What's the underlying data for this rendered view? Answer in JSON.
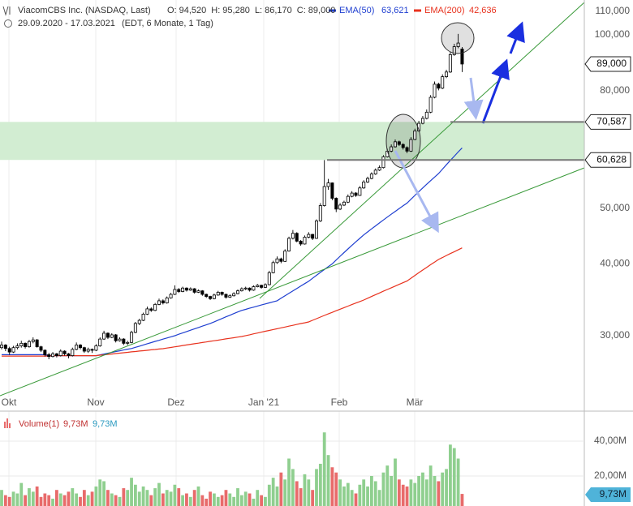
{
  "header": {
    "title": "ViacomCBS Inc. (NASDAQ, Last)",
    "quote": [
      {
        "key": "O:",
        "text": "94,520"
      },
      {
        "key": "H:",
        "text": "95,280"
      },
      {
        "key": "L:",
        "text": "86,170"
      },
      {
        "key": "C:",
        "text": "89,000"
      }
    ],
    "range": "29.09.2020 - 17.03.2021",
    "info": "(EDT, 6 Monate, 1 Tag)"
  },
  "chart_data": [
    {
      "type": "candlestick",
      "months": [
        "Okt",
        "Nov",
        "Dez",
        "Jan '21",
        "Feb",
        "Mär"
      ],
      "ohlc": [
        [
          28600,
          29300,
          28400,
          28900
        ],
        [
          28900,
          29000,
          28200,
          28500
        ],
        [
          28500,
          28700,
          27800,
          28100
        ],
        [
          28100,
          28800,
          28000,
          28600
        ],
        [
          28600,
          29100,
          28400,
          28800
        ],
        [
          28800,
          29400,
          28600,
          29100
        ],
        [
          29100,
          29200,
          28500,
          28700
        ],
        [
          28700,
          29500,
          28600,
          29300
        ],
        [
          29300,
          29800,
          29100,
          29500
        ],
        [
          29500,
          29600,
          28600,
          28700
        ],
        [
          28700,
          28800,
          28100,
          28300
        ],
        [
          28300,
          28400,
          27600,
          27800
        ],
        [
          27800,
          28000,
          27300,
          27600
        ],
        [
          27600,
          28100,
          27500,
          27900
        ],
        [
          27900,
          28000,
          27500,
          27700
        ],
        [
          27700,
          28400,
          27600,
          28200
        ],
        [
          28200,
          28300,
          27700,
          27900
        ],
        [
          27900,
          28000,
          27400,
          27700
        ],
        [
          27700,
          28600,
          27600,
          28400
        ],
        [
          28400,
          29200,
          28300,
          28900
        ],
        [
          28900,
          29000,
          28400,
          28600
        ],
        [
          28600,
          28700,
          28000,
          28200
        ],
        [
          28200,
          28600,
          28000,
          28400
        ],
        [
          28400,
          28500,
          28000,
          28300
        ],
        [
          28300,
          29000,
          28200,
          28800
        ],
        [
          28800,
          29800,
          28700,
          29600
        ],
        [
          29600,
          30600,
          29500,
          30300
        ],
        [
          30300,
          30400,
          29600,
          29800
        ],
        [
          29800,
          30300,
          29700,
          30100
        ],
        [
          30100,
          30200,
          29200,
          29400
        ],
        [
          29400,
          29800,
          29300,
          29600
        ],
        [
          29600,
          29700,
          28900,
          29100
        ],
        [
          29100,
          29400,
          28900,
          29200
        ],
        [
          29200,
          30600,
          29100,
          30400
        ],
        [
          30400,
          31700,
          30300,
          31500
        ],
        [
          31500,
          32100,
          31300,
          31900
        ],
        [
          31900,
          32900,
          31800,
          32700
        ],
        [
          32700,
          33700,
          32600,
          33400
        ],
        [
          33400,
          33600,
          33000,
          33200
        ],
        [
          33200,
          34200,
          33100,
          34000
        ],
        [
          34000,
          34800,
          33900,
          34500
        ],
        [
          34500,
          34700,
          34000,
          34200
        ],
        [
          34200,
          35100,
          34100,
          34900
        ],
        [
          34900,
          35600,
          34800,
          35400
        ],
        [
          35400,
          36700,
          35300,
          36100
        ],
        [
          36100,
          36300,
          35600,
          35800
        ],
        [
          35800,
          36500,
          35700,
          36300
        ],
        [
          36300,
          36400,
          35800,
          36000
        ],
        [
          36000,
          36400,
          35900,
          36200
        ],
        [
          36200,
          36300,
          35500,
          35700
        ],
        [
          35700,
          36100,
          35600,
          35900
        ],
        [
          35900,
          36000,
          35200,
          35400
        ],
        [
          35400,
          35500,
          34900,
          35100
        ],
        [
          35100,
          35200,
          34600,
          34800
        ],
        [
          34800,
          35500,
          34700,
          35300
        ],
        [
          35300,
          35900,
          35200,
          35700
        ],
        [
          35700,
          35800,
          35200,
          35400
        ],
        [
          35400,
          35500,
          34800,
          35000
        ],
        [
          35000,
          35400,
          34900,
          35200
        ],
        [
          35200,
          35700,
          35100,
          35500
        ],
        [
          35500,
          36100,
          35400,
          35900
        ],
        [
          35900,
          36400,
          35800,
          36200
        ],
        [
          36200,
          36500,
          36000,
          36300
        ],
        [
          36300,
          36400,
          35800,
          36000
        ],
        [
          36000,
          36700,
          35900,
          36500
        ],
        [
          36500,
          36900,
          36400,
          36700
        ],
        [
          36700,
          36800,
          36200,
          36400
        ],
        [
          36400,
          37000,
          36300,
          36800
        ],
        [
          36800,
          38900,
          36700,
          38600
        ],
        [
          38600,
          40500,
          38500,
          40200
        ],
        [
          40200,
          41200,
          40000,
          40800
        ],
        [
          40800,
          41000,
          40100,
          40400
        ],
        [
          40400,
          42400,
          40300,
          42100
        ],
        [
          42100,
          44600,
          42000,
          44300
        ],
        [
          44300,
          45800,
          44100,
          45200
        ],
        [
          45200,
          45400,
          43600,
          43800
        ],
        [
          43800,
          44000,
          43000,
          43300
        ],
        [
          43300,
          44800,
          43200,
          44500
        ],
        [
          44500,
          45400,
          44300,
          45000
        ],
        [
          45000,
          45100,
          44000,
          44300
        ],
        [
          44300,
          47800,
          44200,
          47500
        ],
        [
          47500,
          51000,
          47300,
          50500
        ],
        [
          50500,
          60600,
          50300,
          54500
        ],
        [
          54500,
          56200,
          53800,
          55300
        ],
        [
          55300,
          55400,
          51600,
          52000
        ],
        [
          52000,
          52200,
          49200,
          49800
        ],
        [
          49800,
          51000,
          49600,
          50600
        ],
        [
          50600,
          51500,
          50400,
          51200
        ],
        [
          51200,
          52800,
          51000,
          52400
        ],
        [
          52400,
          53500,
          52200,
          53100
        ],
        [
          53100,
          53300,
          52300,
          52600
        ],
        [
          52600,
          54600,
          52500,
          54200
        ],
        [
          54200,
          55900,
          54000,
          55500
        ],
        [
          55500,
          56700,
          55300,
          56300
        ],
        [
          56300,
          57700,
          56100,
          57300
        ],
        [
          57300,
          58600,
          57100,
          58200
        ],
        [
          58200,
          59300,
          58000,
          58800
        ],
        [
          58800,
          61800,
          58600,
          61400
        ],
        [
          61400,
          63400,
          61200,
          62800
        ],
        [
          62800,
          64500,
          62500,
          63900
        ],
        [
          63900,
          65800,
          63700,
          65200
        ],
        [
          65200,
          65500,
          64100,
          64500
        ],
        [
          64500,
          64800,
          63200,
          63700
        ],
        [
          63700,
          64000,
          62300,
          62800
        ],
        [
          62800,
          66400,
          62600,
          65800
        ],
        [
          65800,
          68700,
          65600,
          68100
        ],
        [
          68100,
          70900,
          67900,
          70200
        ],
        [
          70200,
          72300,
          69900,
          71600
        ],
        [
          71600,
          74200,
          71300,
          73400
        ],
        [
          73400,
          78600,
          73100,
          77900
        ],
        [
          77900,
          83000,
          77600,
          82100
        ],
        [
          82100,
          82600,
          80100,
          80800
        ],
        [
          80800,
          85400,
          80500,
          84600
        ],
        [
          84600,
          87000,
          84100,
          86200
        ],
        [
          86200,
          93400,
          85900,
          92400
        ],
        [
          92400,
          96500,
          92000,
          95400
        ],
        [
          95400,
          100400,
          94800,
          96800
        ],
        [
          94520,
          95280,
          86170,
          89000
        ]
      ],
      "up_color": "#ffffff",
      "down_color": "#000000",
      "series": [
        {
          "name": "EMA(50)",
          "color": "#1f3fd0",
          "last_label": "63,621",
          "values": [
            27800,
            27800,
            27800,
            27800,
            27800,
            27800,
            27800,
            27800,
            27800,
            27800,
            27800,
            27800,
            27700,
            27700,
            27700,
            27700,
            27700,
            27700,
            27700,
            27700,
            27700,
            27700,
            27700,
            27700,
            27700,
            27790,
            27880,
            27970,
            28060,
            28150,
            28240,
            28330,
            28420,
            28500,
            28640,
            28770,
            28910,
            29050,
            29180,
            29320,
            29450,
            29590,
            29730,
            29860,
            30000,
            30170,
            30330,
            30500,
            30670,
            30830,
            31000,
            31170,
            31330,
            31500,
            31710,
            31930,
            32140,
            32350,
            32560,
            32780,
            32990,
            33200,
            33340,
            33490,
            33630,
            33780,
            33920,
            34070,
            34210,
            34360,
            34500,
            34850,
            35200,
            35550,
            35900,
            36250,
            36600,
            36950,
            37300,
            37750,
            38200,
            38650,
            39100,
            39550,
            40000,
            40610,
            41230,
            41840,
            42450,
            43060,
            43680,
            44290,
            44900,
            45450,
            46010,
            46560,
            47120,
            47670,
            48230,
            48780,
            49340,
            49890,
            50450,
            51000,
            51800,
            52600,
            53400,
            54200,
            55000,
            55800,
            56600,
            57400,
            58440,
            59470,
            60510,
            61550,
            62590,
            63621
          ]
        },
        {
          "name": "EMA(200)",
          "color": "#e8321e",
          "last_label": "42,636",
          "values": [
            27650,
            27650,
            27650,
            27650,
            27650,
            27650,
            27650,
            27650,
            27650,
            27650,
            27650,
            27650,
            27650,
            27700,
            27700,
            27700,
            27700,
            27700,
            27700,
            27700,
            27700,
            27700,
            27700,
            27700,
            27700,
            27750,
            27790,
            27840,
            27880,
            27930,
            27980,
            28020,
            28070,
            28120,
            28160,
            28210,
            28250,
            28300,
            28350,
            28390,
            28440,
            28480,
            28550,
            28620,
            28690,
            28760,
            28840,
            28910,
            28980,
            29050,
            29120,
            29190,
            29260,
            29330,
            29400,
            29470,
            29540,
            29620,
            29690,
            29760,
            29830,
            29900,
            30010,
            30110,
            30220,
            30320,
            30430,
            30540,
            30640,
            30750,
            30850,
            30960,
            31060,
            31170,
            31270,
            31380,
            31490,
            31590,
            31700,
            31910,
            32110,
            32320,
            32530,
            32740,
            32940,
            33150,
            33360,
            33560,
            33770,
            33980,
            34190,
            34390,
            34600,
            34850,
            35100,
            35350,
            35600,
            35850,
            36090,
            36340,
            36590,
            36840,
            37090,
            37340,
            37760,
            38180,
            38600,
            39020,
            39440,
            39860,
            40280,
            40700,
            41020,
            41350,
            41670,
            41990,
            42310,
            42636
          ]
        }
      ],
      "ylim": [
        23440,
        115000
      ],
      "log_scale": true,
      "grid": true,
      "yticks": [
        {
          "value": 30000,
          "label": "30,000"
        },
        {
          "value": 40000,
          "label": "40,000"
        },
        {
          "value": 50000,
          "label": "50,000"
        },
        {
          "value": 80000,
          "label": "80,000"
        },
        {
          "value": 100000,
          "label": "100,000"
        },
        {
          "value": 110000,
          "label": "110,000"
        }
      ],
      "levels": [
        {
          "value": 89000,
          "label": "89,000"
        },
        {
          "value": 70587,
          "label": "70,587"
        },
        {
          "value": 60628,
          "label": "60,628"
        }
      ],
      "zone_color": "#d2edd2"
    },
    {
      "type": "volume",
      "title": "Volume(1)",
      "last_label": "9,73M",
      "up_color": "#8fcf8f",
      "down_color": "#e86b6b",
      "marker_color": "#4fb3d9",
      "values": [
        12000000,
        9000000,
        8000000,
        11000000,
        10000000,
        16000000,
        9000000,
        13000000,
        11000000,
        14000000,
        8000000,
        10000000,
        9000000,
        7000000,
        12000000,
        10000000,
        9000000,
        11000000,
        13000000,
        10000000,
        8000000,
        12000000,
        9000000,
        11000000,
        14000000,
        18000000,
        17000000,
        12000000,
        10000000,
        9000000,
        8000000,
        13000000,
        12000000,
        19000000,
        15000000,
        11000000,
        14000000,
        12000000,
        9000000,
        13000000,
        16000000,
        10000000,
        12000000,
        11000000,
        15000000,
        13000000,
        9000000,
        10000000,
        8000000,
        12000000,
        14000000,
        9000000,
        7000000,
        11000000,
        10000000,
        8000000,
        9000000,
        12000000,
        10000000,
        8000000,
        13000000,
        9000000,
        11000000,
        10000000,
        7000000,
        12000000,
        9000000,
        8000000,
        15000000,
        19000000,
        14000000,
        22000000,
        18000000,
        30000000,
        24000000,
        17000000,
        13000000,
        21000000,
        18000000,
        12000000,
        24000000,
        27000000,
        45000000,
        32000000,
        25000000,
        22000000,
        18000000,
        14000000,
        16000000,
        12000000,
        10000000,
        15000000,
        18000000,
        14000000,
        20000000,
        17000000,
        12000000,
        22000000,
        26000000,
        20000000,
        30000000,
        18000000,
        15000000,
        14000000,
        18000000,
        16000000,
        20000000,
        22000000,
        18000000,
        26000000,
        20000000,
        17000000,
        22000000,
        24000000,
        38000000,
        36000000,
        30000000,
        9730000
      ],
      "ylim": [
        2800000,
        55800000
      ],
      "grid": true,
      "yticks": [
        {
          "value": 20000000,
          "label": "20,00M"
        },
        {
          "value": 40000000,
          "label": "40,00M"
        }
      ]
    }
  ]
}
